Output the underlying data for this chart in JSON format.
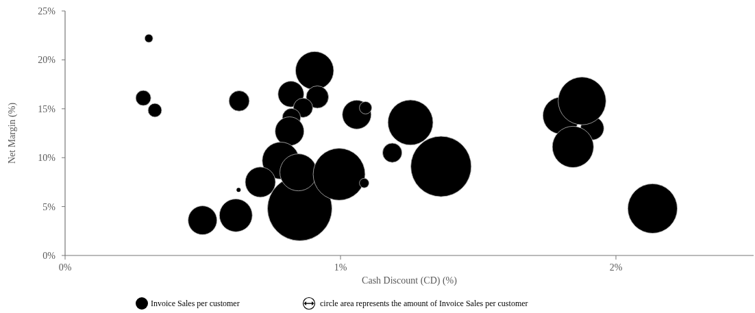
{
  "chart_data": {
    "type": "bubble",
    "xlabel": "Cash Discount (CD) (%)",
    "ylabel": "Net Margin (%)",
    "xlim": [
      0,
      2.5
    ],
    "xticks": [
      {
        "value": 0,
        "label": "0%"
      },
      {
        "value": 1,
        "label": "1%"
      },
      {
        "value": 2,
        "label": "2%"
      }
    ],
    "ylim": [
      0,
      25
    ],
    "yticks": [
      {
        "value": 0,
        "label": "0%"
      },
      {
        "value": 5,
        "label": "5%"
      },
      {
        "value": 10,
        "label": "10%"
      },
      {
        "value": 15,
        "label": "15%"
      },
      {
        "value": 20,
        "label": "20%"
      },
      {
        "value": 25,
        "label": "25%"
      }
    ],
    "grid": false,
    "legend": "bottom",
    "annotations": [
      "circle area represents the amount of Invoice Sales per customer"
    ],
    "series": [
      {
        "name": "Invoice Sales per customer",
        "color": "#000000",
        "x": [
          0.304,
          0.284,
          0.326,
          0.632,
          0.906,
          0.82,
          0.916,
          0.864,
          0.822,
          0.815,
          0.783,
          0.709,
          0.63,
          0.852,
          0.847,
          0.995,
          1.086,
          0.499,
          0.62,
          1.059,
          1.091,
          1.188,
          1.254,
          1.365,
          1.802,
          1.914,
          1.877,
          1.844,
          2.133
        ],
        "values": [
          22.2,
          16.1,
          14.85,
          15.8,
          18.9,
          16.5,
          16.2,
          15.1,
          14.1,
          12.7,
          9.7,
          7.5,
          6.7,
          4.8,
          8.5,
          8.3,
          7.4,
          3.6,
          4.1,
          14.4,
          15.1,
          10.5,
          13.6,
          9.1,
          14.3,
          13.0,
          15.8,
          11.1,
          4.8
        ],
        "sizes": [
          0.016,
          0.055,
          0.045,
          0.1,
          0.35,
          0.16,
          0.12,
          0.09,
          0.08,
          0.2,
          0.33,
          0.22,
          0.004,
          1,
          0.33,
          0.65,
          0.022,
          0.2,
          0.26,
          0.2,
          0.037,
          0.09,
          0.49,
          0.88,
          0.33,
          0.13,
          0.55,
          0.41,
          0.59
        ]
      }
    ]
  }
}
